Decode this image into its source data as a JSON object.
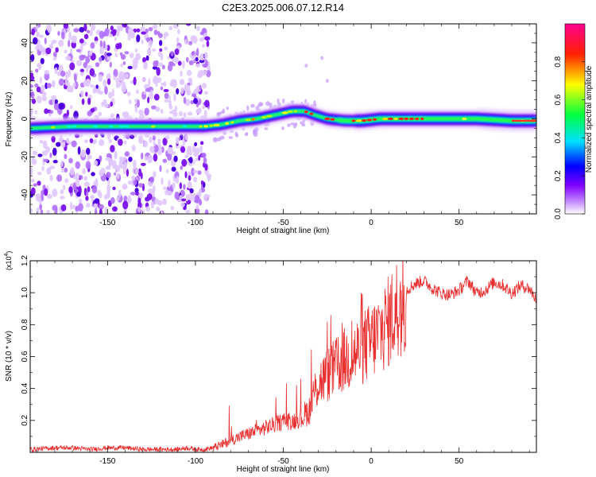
{
  "title": "C2E3.2025.006.07.12.R14",
  "chart_data": [
    {
      "type": "heatmap",
      "title": "C2E3.2025.006.07.12.R14",
      "xlabel": "Height of straight line (km)",
      "ylabel": "Frequency (Hz)",
      "xlim": [
        -194,
        94
      ],
      "ylim": [
        -50,
        50
      ],
      "xticks": [
        -150,
        -100,
        -50,
        0,
        50
      ],
      "xtick_labels": [
        "-150",
        "-100",
        "-50",
        "0",
        "50"
      ],
      "yticks": [
        -40,
        -20,
        0,
        20,
        40
      ],
      "ytick_labels": [
        "-40",
        "-20",
        "0",
        "20",
        "40"
      ],
      "colorbar": {
        "label": "Normalized spectral amplitude",
        "range": [
          0,
          1
        ],
        "ticks": [
          0.0,
          0.2,
          0.4,
          0.6,
          0.8
        ],
        "tick_labels": [
          "0.0",
          "0.2",
          "0.4",
          "0.6",
          "0.8"
        ],
        "colormap": [
          "#ffffff",
          "#a020f0",
          "#0000ff",
          "#00ffff",
          "#00ff00",
          "#ffff00",
          "#ff0000",
          "#ff0090"
        ]
      },
      "ridge": {
        "x": [
          -194,
          -170,
          -150,
          -130,
          -110,
          -95,
          -85,
          -75,
          -65,
          -55,
          -45,
          -38,
          -32,
          -25,
          -15,
          -5,
          5,
          20,
          40,
          60,
          80,
          94
        ],
        "y": [
          -5,
          -4,
          -4,
          -4,
          -4,
          -4,
          -3,
          -1,
          0,
          2,
          4,
          4,
          2,
          0,
          -1,
          -1,
          0,
          0,
          0,
          0,
          -1,
          -1
        ]
      }
    },
    {
      "type": "line",
      "xlabel": "Height of straight line (km)",
      "ylabel": "SNR (10 * v/v)",
      "y_multiplier_label": "(x10",
      "y_multiplier_exponent": "4",
      "y_multiplier_close": ")",
      "xlim": [
        -194,
        94
      ],
      "ylim": [
        0,
        1.2
      ],
      "xticks": [
        -150,
        -100,
        -50,
        0,
        50
      ],
      "xtick_labels": [
        "-150",
        "-100",
        "-50",
        "0",
        "50"
      ],
      "yticks": [
        0.2,
        0.4,
        0.6,
        0.8,
        1.0,
        1.2
      ],
      "ytick_labels": [
        "0.2",
        "0.4",
        "0.6",
        "0.8",
        "1.0",
        "1.2"
      ],
      "color": "#e83030",
      "series": [
        {
          "name": "SNR",
          "x": [
            -194,
            -180,
            -170,
            -160,
            -150,
            -140,
            -130,
            -120,
            -110,
            -105,
            -100,
            -95,
            -90,
            -85,
            -80,
            -75,
            -70,
            -65,
            -60,
            -55,
            -50,
            -45,
            -40,
            -35,
            -32,
            -30,
            -25,
            -20,
            -15,
            -10,
            -5,
            0,
            5,
            10,
            15,
            20,
            25,
            30,
            35,
            40,
            45,
            50,
            55,
            60,
            65,
            70,
            75,
            80,
            85,
            90,
            94
          ],
          "y": [
            0.02,
            0.03,
            0.03,
            0.02,
            0.03,
            0.03,
            0.02,
            0.02,
            0.02,
            0.03,
            0.02,
            0.02,
            0.03,
            0.05,
            0.08,
            0.1,
            0.12,
            0.14,
            0.16,
            0.18,
            0.2,
            0.2,
            0.22,
            0.28,
            0.4,
            0.45,
            0.5,
            0.55,
            0.6,
            0.63,
            0.68,
            0.72,
            0.78,
            0.85,
            0.95,
            1.02,
            1.06,
            1.08,
            1.03,
            1.0,
            0.99,
            1.02,
            1.08,
            1.0,
            1.02,
            1.07,
            1.05,
            1.0,
            1.05,
            1.03,
            0.96
          ]
        }
      ]
    }
  ]
}
